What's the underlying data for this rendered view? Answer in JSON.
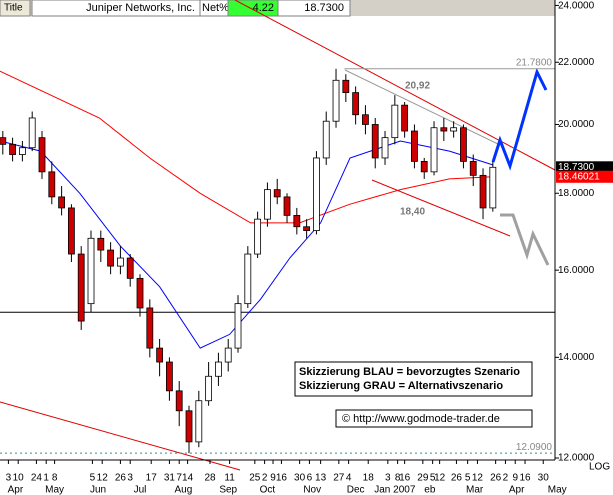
{
  "header": {
    "title_tab": "Title",
    "name": "Juniper Networks, Inc.",
    "net_label": "Net%",
    "net_value": "4.22"
  },
  "chart_data": {
    "type": "candlestick",
    "log_scale": true,
    "scale_label": "LOG",
    "xlim": [
      0,
      396.4
    ],
    "ylim": [
      12,
      24.2
    ],
    "yticks": [
      {
        "value": 24,
        "label": "24.0000"
      },
      {
        "value": 22,
        "label": "22.0000"
      },
      {
        "value": 20,
        "label": "20.0000"
      },
      {
        "value": 18,
        "label": "18.0000"
      },
      {
        "value": 16,
        "label": "16.0000"
      },
      {
        "value": 14,
        "label": "14.0000"
      },
      {
        "value": 12,
        "label": "12.0000"
      }
    ],
    "xticks": [
      {
        "value": 6,
        "label": "3"
      },
      {
        "value": 13,
        "label": "10"
      },
      {
        "value": 26,
        "label": "24"
      },
      {
        "value": 33,
        "label": "1"
      },
      {
        "value": 39,
        "label": "8"
      },
      {
        "value": 66,
        "label": "5"
      },
      {
        "value": 73,
        "label": "12"
      },
      {
        "value": 86,
        "label": "26"
      },
      {
        "value": 93,
        "label": "3"
      },
      {
        "value": 108,
        "label": "17"
      },
      {
        "value": 121,
        "label": "31"
      },
      {
        "value": 128,
        "label": "7"
      },
      {
        "value": 134,
        "label": "14"
      },
      {
        "value": 150,
        "label": "28"
      },
      {
        "value": 164,
        "label": "11"
      },
      {
        "value": 182,
        "label": "25"
      },
      {
        "value": 189,
        "label": "2"
      },
      {
        "value": 195,
        "label": "9"
      },
      {
        "value": 201,
        "label": "16"
      },
      {
        "value": 214,
        "label": "30"
      },
      {
        "value": 221,
        "label": "6"
      },
      {
        "value": 229,
        "label": "13"
      },
      {
        "value": 242,
        "label": "27"
      },
      {
        "value": 249,
        "label": "4"
      },
      {
        "value": 263,
        "label": "18"
      },
      {
        "value": 277,
        "label": "3"
      },
      {
        "value": 284,
        "label": "8"
      },
      {
        "value": 289,
        "label": "16"
      },
      {
        "value": 302,
        "label": "29"
      },
      {
        "value": 309,
        "label": "5"
      },
      {
        "value": 314,
        "label": "12"
      },
      {
        "value": 326,
        "label": "26"
      },
      {
        "value": 334,
        "label": "5"
      },
      {
        "value": 341,
        "label": "12"
      },
      {
        "value": 354,
        "label": "26"
      },
      {
        "value": 361,
        "label": "2"
      },
      {
        "value": 368,
        "label": "9"
      },
      {
        "value": 375,
        "label": "16"
      },
      {
        "value": 388,
        "label": "30"
      }
    ],
    "months": [
      {
        "value": 11,
        "label": "Apr"
      },
      {
        "value": 39,
        "label": "May"
      },
      {
        "value": 70,
        "label": "Jun"
      },
      {
        "value": 100,
        "label": "Jul"
      },
      {
        "value": 131,
        "label": "Aug"
      },
      {
        "value": 163,
        "label": "Sep"
      },
      {
        "value": 191,
        "label": "Oct"
      },
      {
        "value": 223,
        "label": "Nov"
      },
      {
        "value": 254,
        "label": "Dec"
      },
      {
        "value": 282,
        "label": "Jan 2007"
      },
      {
        "value": 307,
        "label": "eb"
      },
      {
        "value": 339,
        "label": "Mar"
      },
      {
        "value": 369,
        "label": "Apr"
      },
      {
        "value": 398,
        "label": "May"
      }
    ],
    "x": [
      2,
      9,
      16,
      23,
      30,
      37,
      44,
      51,
      58,
      65,
      72,
      79,
      86,
      93,
      100,
      107,
      114,
      121,
      128,
      135,
      142,
      149,
      156,
      163,
      170,
      177,
      184,
      191,
      198,
      205,
      212,
      219,
      226,
      233,
      240,
      247,
      254,
      261,
      268,
      275,
      282,
      289,
      296,
      303,
      310,
      317,
      324,
      331,
      338,
      345,
      352
    ],
    "open": [
      19.6,
      19.4,
      19.1,
      19.3,
      19.6,
      18.6,
      17.9,
      17.6,
      16.4,
      15.2,
      16.8,
      16.5,
      16.1,
      16.3,
      15.8,
      15.1,
      14.2,
      13.9,
      13.3,
      12.9,
      12.3,
      13.1,
      13.6,
      13.9,
      14.2,
      15.2,
      16.4,
      17.3,
      18.1,
      17.9,
      17.4,
      17.1,
      17.0,
      19.0,
      20.1,
      21.4,
      21.0,
      20.3,
      20.0,
      19.0,
      19.6,
      20.6,
      19.8,
      18.9,
      18.6,
      19.9,
      19.8,
      19.9,
      18.9,
      18.5,
      17.6
    ],
    "high": [
      19.8,
      19.6,
      19.5,
      20.4,
      19.8,
      18.9,
      18.2,
      17.7,
      16.6,
      17.0,
      17.0,
      16.7,
      16.6,
      16.4,
      15.9,
      15.3,
      14.4,
      14.0,
      13.5,
      13.0,
      13.3,
      13.9,
      14.1,
      14.4,
      15.4,
      16.6,
      17.5,
      18.3,
      18.4,
      18.0,
      17.6,
      17.3,
      19.2,
      20.4,
      21.78,
      21.6,
      21.2,
      20.6,
      20.2,
      19.8,
      20.92,
      20.7,
      20.0,
      19.0,
      20.1,
      20.2,
      20.1,
      20.0,
      19.1,
      18.7,
      18.9
    ],
    "low": [
      19.1,
      18.9,
      18.9,
      19.2,
      18.4,
      17.7,
      17.4,
      16.2,
      14.6,
      15.0,
      16.2,
      15.9,
      15.9,
      15.6,
      14.9,
      14.0,
      13.6,
      13.1,
      12.6,
      12.09,
      12.2,
      13.0,
      13.4,
      13.7,
      14.1,
      15.1,
      16.3,
      17.1,
      17.7,
      17.2,
      16.9,
      16.8,
      16.9,
      18.8,
      19.9,
      20.7,
      20.0,
      19.7,
      18.7,
      18.8,
      19.4,
      19.6,
      18.7,
      18.4,
      18.5,
      19.5,
      19.6,
      18.7,
      18.2,
      17.3,
      17.5
    ],
    "close": [
      19.4,
      19.1,
      19.3,
      20.2,
      18.6,
      17.9,
      17.6,
      16.4,
      14.8,
      16.8,
      16.5,
      16.1,
      16.3,
      15.8,
      15.1,
      14.2,
      13.9,
      13.3,
      12.9,
      12.3,
      13.1,
      13.6,
      13.9,
      14.2,
      15.2,
      16.4,
      17.3,
      18.1,
      17.9,
      17.4,
      17.1,
      17.0,
      19.0,
      20.1,
      21.4,
      21.0,
      20.3,
      20.0,
      19.0,
      19.6,
      20.6,
      19.8,
      18.9,
      18.6,
      19.9,
      19.8,
      19.9,
      18.9,
      18.5,
      17.6,
      18.73
    ],
    "up_color": "#ffffff",
    "down_color": "#cc0000",
    "lines": [
      {
        "color": "#ff0000",
        "x": [
          0,
          71,
          107,
          143,
          179,
          214,
          250,
          286,
          321,
          352
        ],
        "values": [
          21.7,
          20.2,
          19.0,
          18.0,
          17.2,
          17.2,
          17.7,
          18.1,
          18.4,
          18.46
        ]
      },
      {
        "color": "#0000ff",
        "x": [
          0,
          29,
          57,
          86,
          114,
          143,
          164,
          186,
          207,
          229,
          250,
          286,
          321,
          352
        ],
        "values": [
          19.5,
          19.2,
          18.0,
          16.6,
          15.6,
          14.2,
          14.5,
          15.3,
          16.3,
          17.2,
          19.0,
          19.5,
          19.2,
          18.8
        ]
      }
    ],
    "hlines": [
      {
        "value": 21.78,
        "label": "21.7800",
        "color": "#999999",
        "from": 246,
        "dash": false
      },
      {
        "value": 12.09,
        "label": "12.0900",
        "color": "#3a8a8a",
        "from": 0,
        "dash": true
      },
      {
        "value": 15.0,
        "color": "#000000",
        "from": 0,
        "dash": false
      }
    ],
    "price_badges": [
      {
        "value": 18.73,
        "label": "18.7300",
        "color": "#000000"
      },
      {
        "value": 18.46021,
        "label": "18.46021",
        "color": "#ff0000"
      }
    ],
    "annotations": [
      "20,92",
      "18,40"
    ],
    "legend_box": [
      "Skizzierung BLAU = bevorzugtes Szenario",
      "Skizzierung GRAU = Alternativszenario"
    ],
    "copyright": "© http://www.godmode-trader.de"
  }
}
